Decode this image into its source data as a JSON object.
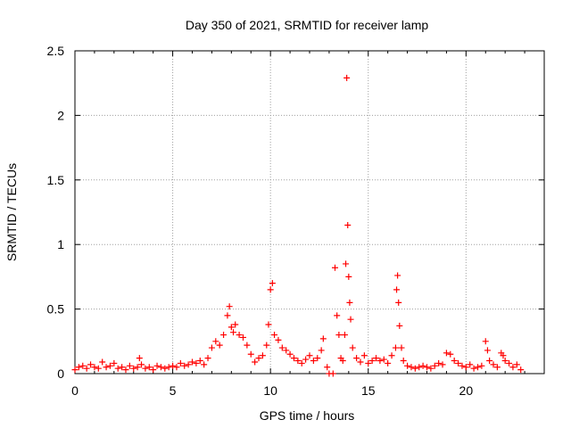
{
  "chart_data": {
    "type": "scatter",
    "title": "Day 350 of 2021, SRMTID for receiver lamp",
    "xlabel": "GPS time / hours",
    "ylabel": "SRMTID / TECUs",
    "xlim": [
      0,
      24
    ],
    "ylim": [
      0,
      2.5
    ],
    "xticks": [
      0,
      5,
      10,
      15,
      20
    ],
    "xtick_labels": [
      "0",
      "5",
      "10",
      "15",
      "20"
    ],
    "yticks": [
      0,
      0.5,
      1,
      1.5,
      2,
      2.5
    ],
    "ytick_labels": [
      "0",
      "0.5",
      "1",
      "1.5",
      "2",
      "2.5"
    ],
    "grid": true,
    "marker": "+",
    "color": "#ff0000",
    "series": [
      {
        "name": "SRMTID",
        "x": [
          0.0,
          0.2,
          0.4,
          0.6,
          0.8,
          1.0,
          1.2,
          1.4,
          1.6,
          1.8,
          2.0,
          2.2,
          2.4,
          2.6,
          2.8,
          3.0,
          3.2,
          3.3,
          3.4,
          3.6,
          3.8,
          4.0,
          4.2,
          4.4,
          4.6,
          4.8,
          5.0,
          5.2,
          5.4,
          5.6,
          5.8,
          6.0,
          6.2,
          6.4,
          6.6,
          6.8,
          7.0,
          7.2,
          7.4,
          7.6,
          7.8,
          7.9,
          8.0,
          8.1,
          8.2,
          8.4,
          8.6,
          8.8,
          9.0,
          9.2,
          9.4,
          9.6,
          9.8,
          9.9,
          10.0,
          10.1,
          10.2,
          10.4,
          10.6,
          10.8,
          11.0,
          11.2,
          11.4,
          11.6,
          11.8,
          12.0,
          12.2,
          12.4,
          12.6,
          12.7,
          12.9,
          13.0,
          13.2,
          13.3,
          13.4,
          13.5,
          13.6,
          13.7,
          13.8,
          13.85,
          13.9,
          13.95,
          14.0,
          14.05,
          14.1,
          14.2,
          14.4,
          14.6,
          14.8,
          15.0,
          15.2,
          15.4,
          15.6,
          15.8,
          16.0,
          16.2,
          16.4,
          16.45,
          16.5,
          16.55,
          16.6,
          16.7,
          16.8,
          17.0,
          17.2,
          17.4,
          17.6,
          17.8,
          18.0,
          18.2,
          18.4,
          18.6,
          18.8,
          19.0,
          19.2,
          19.4,
          19.6,
          19.8,
          20.0,
          20.2,
          20.4,
          20.6,
          20.8,
          21.0,
          21.1,
          21.2,
          21.4,
          21.6,
          21.8,
          21.9,
          22.0,
          22.2,
          22.4,
          22.6,
          22.8
        ],
        "y": [
          0.03,
          0.05,
          0.06,
          0.04,
          0.07,
          0.05,
          0.04,
          0.09,
          0.05,
          0.06,
          0.08,
          0.04,
          0.05,
          0.03,
          0.06,
          0.04,
          0.05,
          0.12,
          0.07,
          0.04,
          0.05,
          0.03,
          0.06,
          0.05,
          0.04,
          0.05,
          0.06,
          0.05,
          0.08,
          0.06,
          0.07,
          0.09,
          0.08,
          0.1,
          0.07,
          0.12,
          0.2,
          0.25,
          0.22,
          0.3,
          0.45,
          0.52,
          0.36,
          0.32,
          0.38,
          0.3,
          0.28,
          0.22,
          0.15,
          0.09,
          0.12,
          0.14,
          0.22,
          0.38,
          0.65,
          0.7,
          0.3,
          0.26,
          0.2,
          0.18,
          0.15,
          0.12,
          0.1,
          0.08,
          0.11,
          0.14,
          0.1,
          0.12,
          0.18,
          0.27,
          0.05,
          0.0,
          0.0,
          0.82,
          0.45,
          0.3,
          0.12,
          0.1,
          0.3,
          0.85,
          2.29,
          1.15,
          0.75,
          0.55,
          0.42,
          0.2,
          0.12,
          0.09,
          0.14,
          0.08,
          0.1,
          0.12,
          0.1,
          0.11,
          0.08,
          0.14,
          0.2,
          0.65,
          0.76,
          0.55,
          0.37,
          0.2,
          0.1,
          0.06,
          0.05,
          0.04,
          0.05,
          0.06,
          0.05,
          0.04,
          0.06,
          0.08,
          0.07,
          0.16,
          0.15,
          0.1,
          0.08,
          0.06,
          0.05,
          0.07,
          0.04,
          0.05,
          0.06,
          0.25,
          0.18,
          0.1,
          0.07,
          0.05,
          0.16,
          0.14,
          0.1,
          0.08,
          0.05,
          0.07,
          0.03
        ]
      }
    ]
  }
}
